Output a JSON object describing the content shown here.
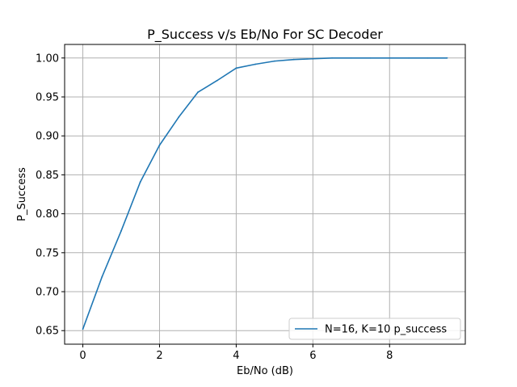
{
  "chart_data": {
    "type": "line",
    "title": "P_Success v/s Eb/No For SC Decoder",
    "xlabel": "Eb/No (dB)",
    "ylabel": "P_Success",
    "xlim": [
      -0.475,
      9.975
    ],
    "ylim": [
      0.6326,
      1.0174
    ],
    "xticks": [
      0,
      2,
      4,
      6,
      8
    ],
    "yticks": [
      0.65,
      0.7,
      0.75,
      0.8,
      0.85,
      0.9,
      0.95,
      1.0
    ],
    "ytick_labels": [
      "0.65",
      "0.70",
      "0.75",
      "0.80",
      "0.85",
      "0.90",
      "0.95",
      "1.00"
    ],
    "grid": true,
    "legend_position": "lower-right",
    "series": [
      {
        "name": "N=16, K=10 p_success",
        "color": "#1f77b4",
        "x": [
          0,
          0.5,
          1,
          1.5,
          2,
          2.5,
          3,
          3.5,
          4,
          4.5,
          5,
          5.5,
          6,
          6.5,
          7,
          7.5,
          8,
          8.5,
          9,
          9.5
        ],
        "y": [
          0.652,
          0.719,
          0.778,
          0.841,
          0.888,
          0.924,
          0.956,
          0.971,
          0.987,
          0.992,
          0.996,
          0.998,
          0.999,
          1.0,
          1.0,
          1.0,
          1.0,
          1.0,
          1.0,
          1.0
        ]
      }
    ]
  }
}
